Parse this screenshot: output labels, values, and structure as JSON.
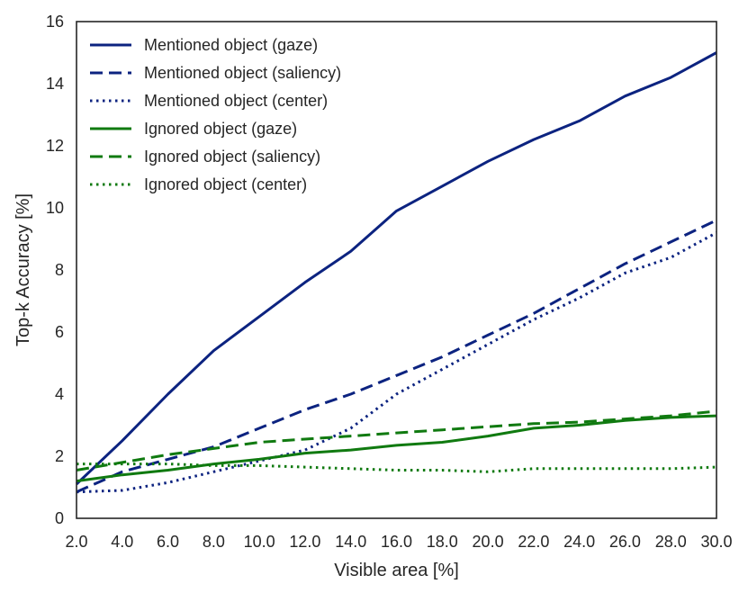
{
  "chart_data": {
    "type": "line",
    "xlabel": "Visible area [%]",
    "ylabel": "Top-k Accuracy [%]",
    "xlim": [
      2,
      30
    ],
    "ylim": [
      0,
      16
    ],
    "xticks": [
      "2.0",
      "4.0",
      "6.0",
      "8.0",
      "10.0",
      "12.0",
      "14.0",
      "16.0",
      "18.0",
      "20.0",
      "22.0",
      "24.0",
      "26.0",
      "28.0",
      "30.0"
    ],
    "yticks": [
      "0",
      "2",
      "4",
      "6",
      "8",
      "10",
      "12",
      "14",
      "16"
    ],
    "grid": false,
    "legend_position": "top-left",
    "x": [
      2,
      4,
      6,
      8,
      10,
      12,
      14,
      16,
      18,
      20,
      22,
      24,
      26,
      28,
      30
    ],
    "series": [
      {
        "name": "Mentioned object (gaze)",
        "color": "#0c2380",
        "style": "solid",
        "values": [
          1.1,
          2.5,
          4.0,
          5.4,
          6.5,
          7.6,
          8.6,
          9.9,
          10.7,
          11.5,
          12.2,
          12.8,
          13.6,
          14.2,
          15.0
        ]
      },
      {
        "name": "Mentioned object (saliency)",
        "color": "#0c2380",
        "style": "dashed",
        "values": [
          0.85,
          1.5,
          1.9,
          2.3,
          2.9,
          3.5,
          4.0,
          4.6,
          5.2,
          5.9,
          6.6,
          7.4,
          8.2,
          8.9,
          9.6
        ]
      },
      {
        "name": "Mentioned object (center)",
        "color": "#0c2380",
        "style": "dotted",
        "values": [
          0.85,
          0.9,
          1.15,
          1.5,
          1.85,
          2.2,
          2.9,
          4.0,
          4.8,
          5.6,
          6.4,
          7.1,
          7.9,
          8.4,
          9.2
        ]
      },
      {
        "name": "Ignored object (gaze)",
        "color": "#107a10",
        "style": "solid",
        "values": [
          1.2,
          1.4,
          1.55,
          1.75,
          1.9,
          2.1,
          2.2,
          2.35,
          2.45,
          2.65,
          2.9,
          3.0,
          3.15,
          3.25,
          3.3
        ]
      },
      {
        "name": "Ignored object (saliency)",
        "color": "#107a10",
        "style": "dashed",
        "values": [
          1.55,
          1.8,
          2.05,
          2.25,
          2.45,
          2.55,
          2.65,
          2.75,
          2.85,
          2.95,
          3.05,
          3.1,
          3.2,
          3.3,
          3.45
        ]
      },
      {
        "name": "Ignored object (center)",
        "color": "#107a10",
        "style": "dotted",
        "values": [
          1.75,
          1.75,
          1.75,
          1.7,
          1.7,
          1.65,
          1.6,
          1.55,
          1.55,
          1.5,
          1.6,
          1.6,
          1.6,
          1.6,
          1.65
        ]
      }
    ]
  }
}
